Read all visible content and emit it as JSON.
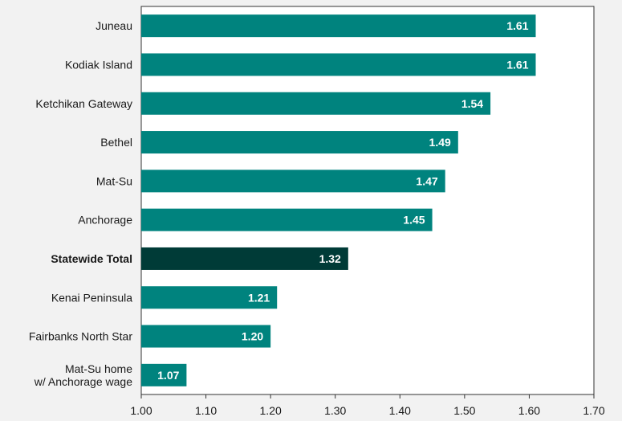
{
  "chart_data": {
    "type": "bar",
    "orientation": "horizontal",
    "categories": [
      "Juneau",
      "Kodiak Island",
      "Ketchikan Gateway",
      "Bethel",
      "Mat-Su",
      "Anchorage",
      "Statewide Total",
      "Kenai Peninsula",
      "Fairbanks North Star",
      "Mat-Su home w/ Anchorage wage"
    ],
    "category_lines": [
      [
        "Juneau"
      ],
      [
        "Kodiak Island"
      ],
      [
        "Ketchikan Gateway"
      ],
      [
        "Bethel"
      ],
      [
        "Mat-Su"
      ],
      [
        "Anchorage"
      ],
      [
        "Statewide Total"
      ],
      [
        "Kenai Peninsula"
      ],
      [
        "Fairbanks North Star"
      ],
      [
        "Mat-Su home",
        "w/ Anchorage wage"
      ]
    ],
    "values": [
      1.61,
      1.61,
      1.54,
      1.49,
      1.47,
      1.45,
      1.32,
      1.21,
      1.2,
      1.07
    ],
    "value_labels": [
      "1.61",
      "1.61",
      "1.54",
      "1.49",
      "1.47",
      "1.45",
      "1.32",
      "1.21",
      "1.20",
      "1.07"
    ],
    "highlight_index": 6,
    "xlim": [
      1.0,
      1.7
    ],
    "xticks": [
      1.0,
      1.1,
      1.2,
      1.3,
      1.4,
      1.5,
      1.6,
      1.7
    ],
    "xtick_labels": [
      "1.00",
      "1.10",
      "1.20",
      "1.30",
      "1.40",
      "1.50",
      "1.60",
      "1.70"
    ],
    "grid": false,
    "legend": "none",
    "colors": {
      "bar": "#00837e",
      "highlight": "#003b37",
      "background": "#f2f2f2",
      "plot_background": "#ffffff",
      "frame": "#333333"
    }
  }
}
